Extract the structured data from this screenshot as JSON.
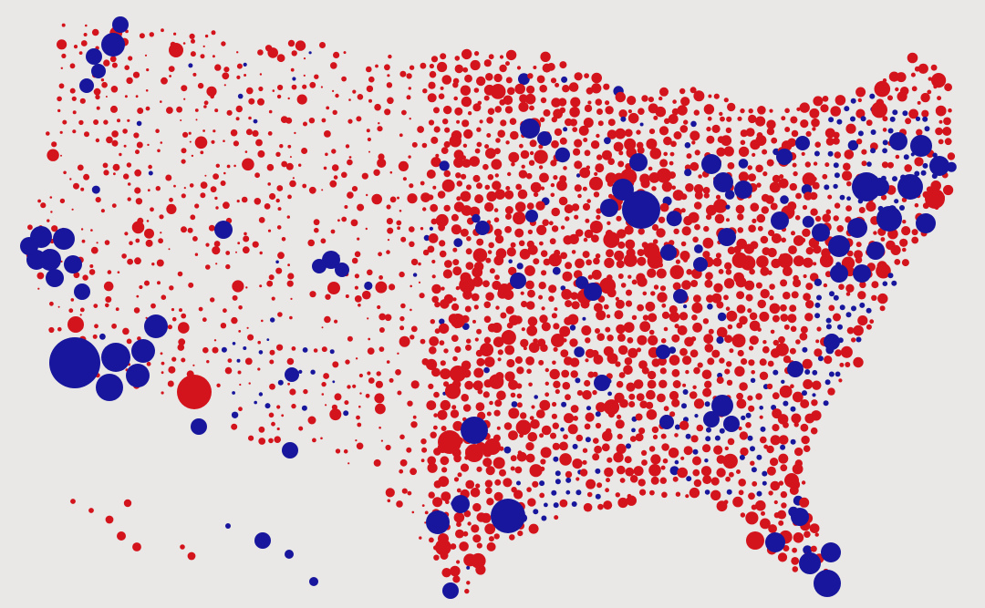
{
  "map": {
    "colors": {
      "blue": "#17169c",
      "red": "#d3141c"
    }
  }
}
